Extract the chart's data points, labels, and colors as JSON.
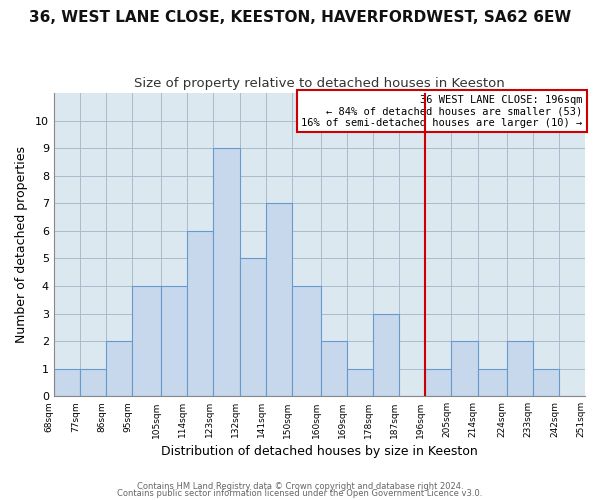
{
  "title": "36, WEST LANE CLOSE, KEESTON, HAVERFORDWEST, SA62 6EW",
  "subtitle": "Size of property relative to detached houses in Keeston",
  "xlabel": "Distribution of detached houses by size in Keeston",
  "ylabel": "Number of detached properties",
  "bar_edges": [
    68,
    77,
    86,
    95,
    105,
    114,
    123,
    132,
    141,
    150,
    160,
    169,
    178,
    187,
    196,
    205,
    214,
    224,
    233,
    242,
    251
  ],
  "bar_heights": [
    1,
    1,
    2,
    4,
    4,
    6,
    9,
    5,
    7,
    4,
    2,
    1,
    3,
    0,
    1,
    2,
    1,
    2,
    1,
    0
  ],
  "bar_color": "#c8d8ec",
  "bar_edgecolor": "#6699cc",
  "grid_color": "#aabbcc",
  "vline_x": 196,
  "vline_color": "#cc0000",
  "ylim": [
    0,
    11
  ],
  "yticks": [
    0,
    1,
    2,
    3,
    4,
    5,
    6,
    7,
    8,
    9,
    10
  ],
  "annotation_title": "36 WEST LANE CLOSE: 196sqm",
  "annotation_line1": "← 84% of detached houses are smaller (53)",
  "annotation_line2": "16% of semi-detached houses are larger (10) →",
  "annotation_box_color": "#cc0000",
  "footer_line1": "Contains HM Land Registry data © Crown copyright and database right 2024.",
  "footer_line2": "Contains public sector information licensed under the Open Government Licence v3.0.",
  "plot_bg_color": "#dce8f0",
  "fig_bg_color": "#ffffff",
  "title_fontsize": 11,
  "subtitle_fontsize": 9.5
}
